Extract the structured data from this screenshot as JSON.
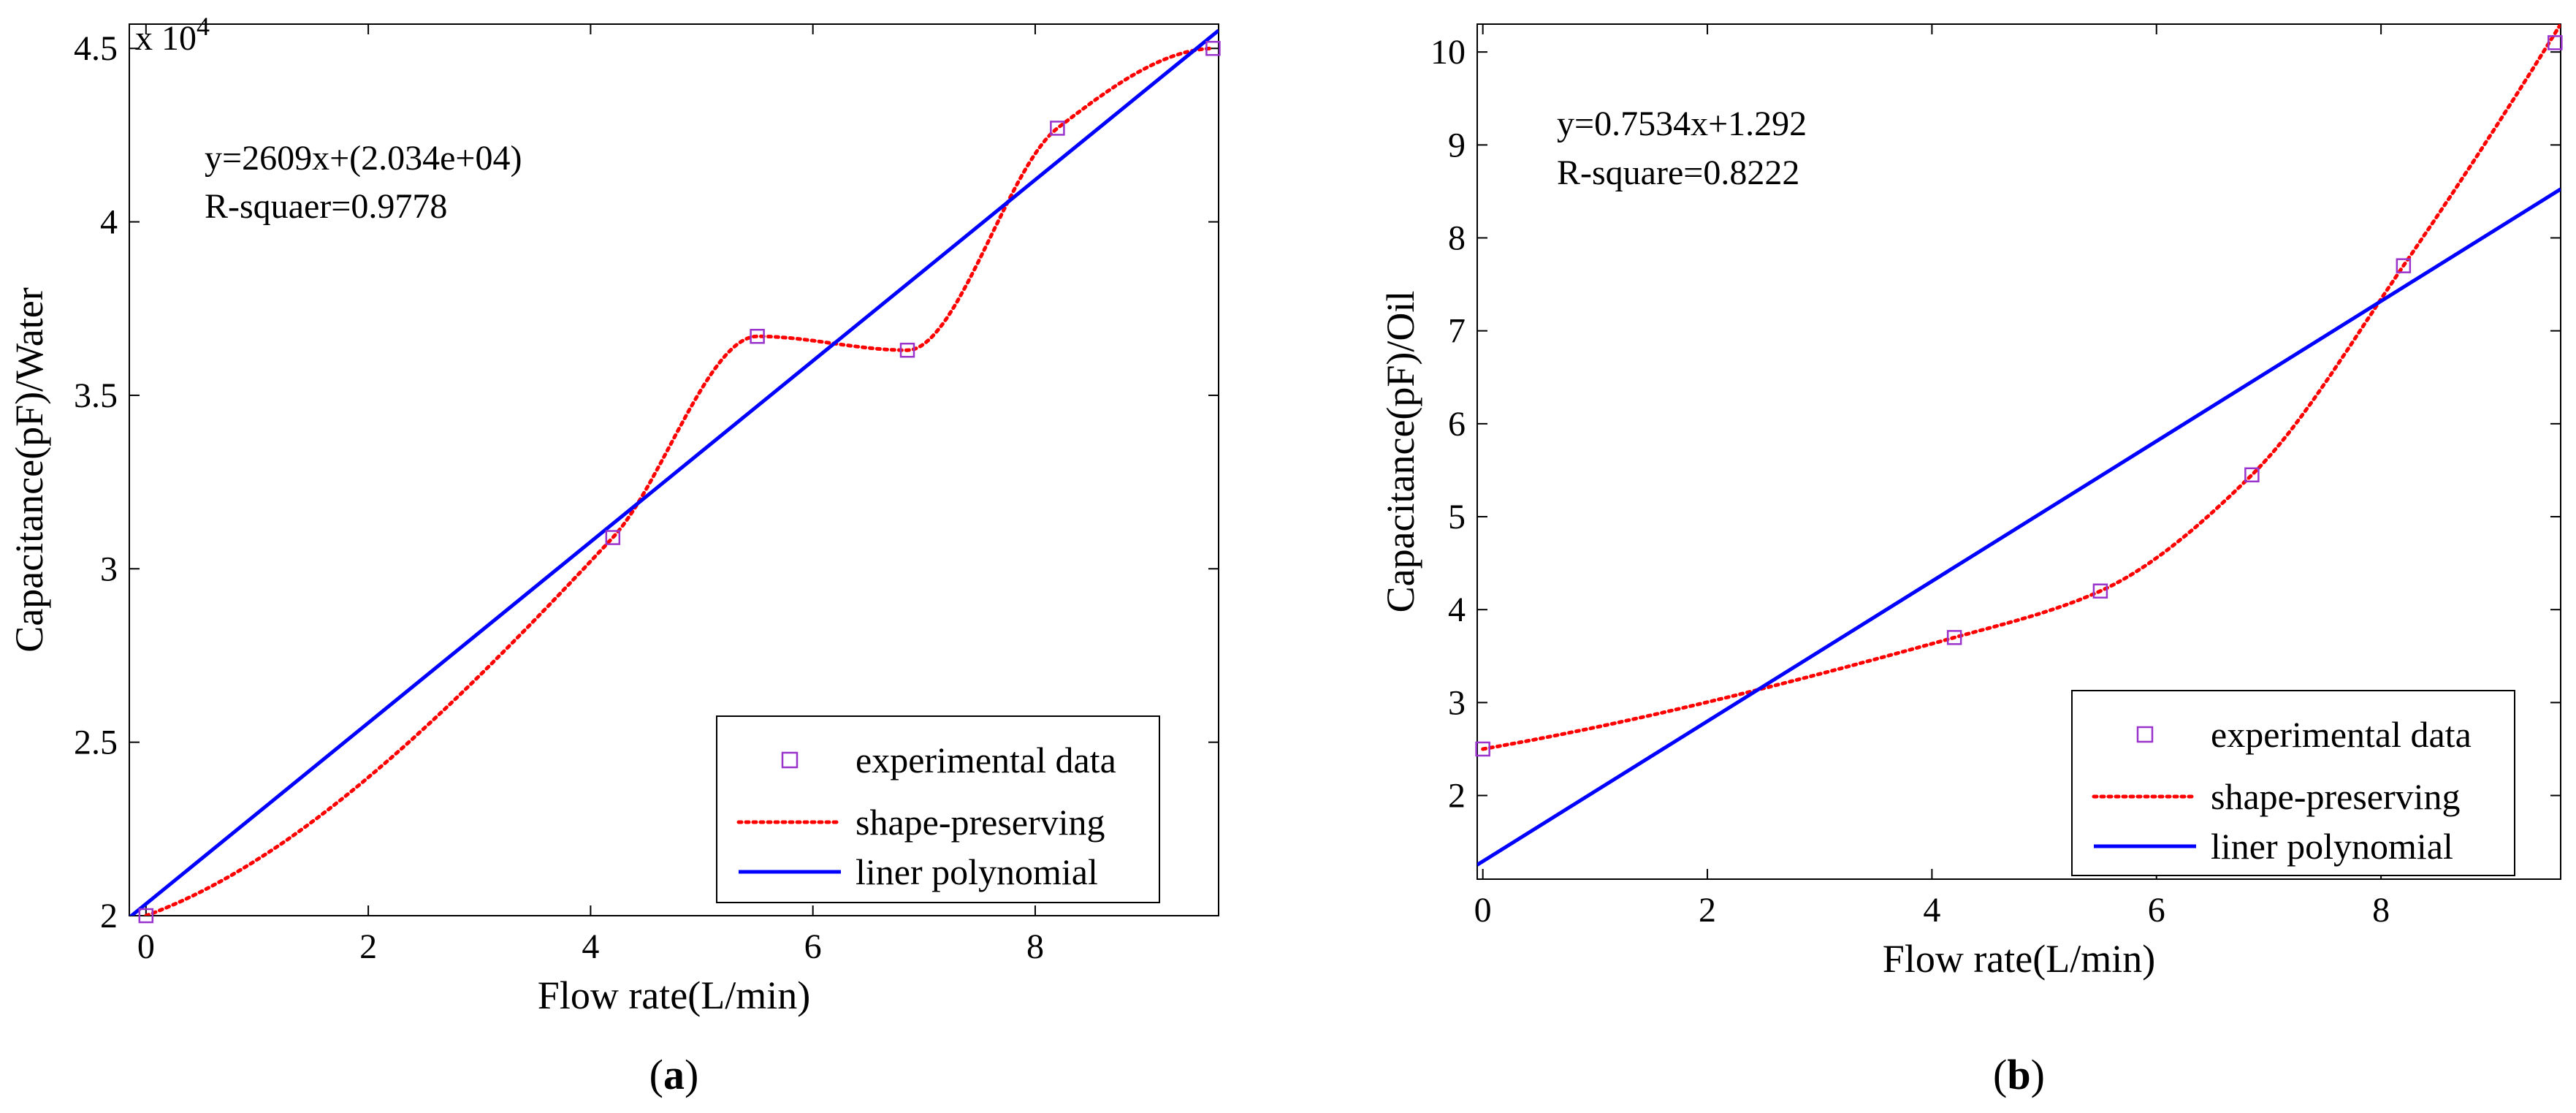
{
  "chart_data": [
    {
      "type": "line",
      "panel_label": "a",
      "xlabel": "Flow rate(L/min)",
      "ylabel": "Capacitance(pF)/Water",
      "xlim": [
        -0.15,
        9.65
      ],
      "ylim": [
        20000,
        45700
      ],
      "xticks": [
        0,
        2,
        4,
        6,
        8
      ],
      "yticks": [
        20000,
        25000,
        30000,
        35000,
        40000,
        45000
      ],
      "ytick_labels": [
        "2",
        "2.5",
        "3",
        "3.5",
        "4",
        "4.5"
      ],
      "y_multiplier": {
        "base": "x 10",
        "exponent": "4"
      },
      "annotation": [
        "y=2609x+(2.034e+04)",
        "R-squaer=0.9778"
      ],
      "legend": {
        "placement": "bottom-right",
        "entries": [
          "experimental data",
          "shape-preserving",
          "liner polynomial"
        ]
      },
      "series": [
        {
          "name": "experimental data",
          "style": "markers",
          "color": "#9933cc",
          "x": [
            0,
            4.2,
            5.5,
            6.85,
            8.2,
            9.6
          ],
          "y": [
            20000,
            30900,
            36700,
            36300,
            42700,
            45000
          ]
        },
        {
          "name": "shape-preserving",
          "style": "dotted",
          "color": "#ff0000",
          "x": [
            0,
            4.2,
            5.5,
            6.85,
            8.2,
            9.6
          ],
          "y": [
            20000,
            30900,
            36700,
            36300,
            42700,
            45000
          ]
        },
        {
          "name": "liner polynomial",
          "style": "solid",
          "color": "#0000ff",
          "slope": 2609,
          "intercept": 20340,
          "x_range": [
            -0.15,
            9.65
          ]
        }
      ]
    },
    {
      "type": "line",
      "panel_label": "b",
      "xlabel": "Flow rate(L/min)",
      "ylabel": "Capacitance(pF)/Oil",
      "xlim": [
        -0.05,
        9.6
      ],
      "ylim": [
        1.1,
        10.3
      ],
      "xticks": [
        0,
        2,
        4,
        6,
        8
      ],
      "yticks": [
        2,
        3,
        4,
        5,
        6,
        7,
        8,
        9,
        10
      ],
      "ytick_labels": [
        "2",
        "3",
        "4",
        "5",
        "6",
        "7",
        "8",
        "9",
        "10"
      ],
      "annotation": [
        "y=0.7534x+1.292",
        "R-square=0.8222"
      ],
      "legend": {
        "placement": "bottom-right",
        "entries": [
          "experimental data",
          "shape-preserving",
          "liner polynomial"
        ]
      },
      "series": [
        {
          "name": "experimental data",
          "style": "markers",
          "color": "#9933cc",
          "x": [
            0,
            4.2,
            5.5,
            6.85,
            8.2,
            9.55
          ],
          "y": [
            2.5,
            3.7,
            4.2,
            5.45,
            7.7,
            10.1
          ]
        },
        {
          "name": "shape-preserving",
          "style": "dotted",
          "color": "#ff0000",
          "x": [
            0,
            4.2,
            5.5,
            6.85,
            8.2,
            9.6
          ],
          "y": [
            2.5,
            3.7,
            4.2,
            5.45,
            7.7,
            10.3
          ]
        },
        {
          "name": "liner polynomial",
          "style": "solid",
          "color": "#0000ff",
          "slope": 0.7534,
          "intercept": 1.292,
          "x_range": [
            -0.05,
            9.6
          ]
        }
      ]
    }
  ]
}
